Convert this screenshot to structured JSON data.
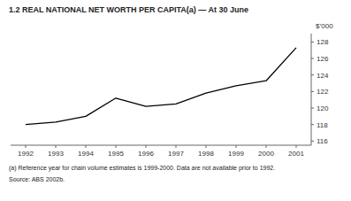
{
  "chart_data": {
    "type": "line",
    "title": "1.2   REAL NATIONAL NET WORTH PER CAPITA(a) — At 30 June",
    "y_label": "$’000",
    "x": [
      1992,
      1993,
      1994,
      1995,
      1996,
      1997,
      1998,
      1999,
      2000,
      2001
    ],
    "values": [
      118.0,
      118.3,
      119.0,
      121.2,
      120.2,
      120.5,
      121.8,
      122.7,
      123.3,
      127.3
    ],
    "color": "#000000",
    "xlim": [
      1991.5,
      2001.5
    ],
    "xticks": [
      1992,
      1993,
      1994,
      1995,
      1996,
      1997,
      1998,
      1999,
      2000,
      2001
    ],
    "ylim": [
      115.5,
      129.0
    ],
    "yticks": [
      116,
      118,
      120,
      122,
      124,
      126,
      128
    ],
    "grid": false,
    "annotations": [
      "(a) Reference year for chain volume estimates is 1999-2000. Data are not available prior to 1992.",
      "Source: ABS 2002b."
    ]
  }
}
